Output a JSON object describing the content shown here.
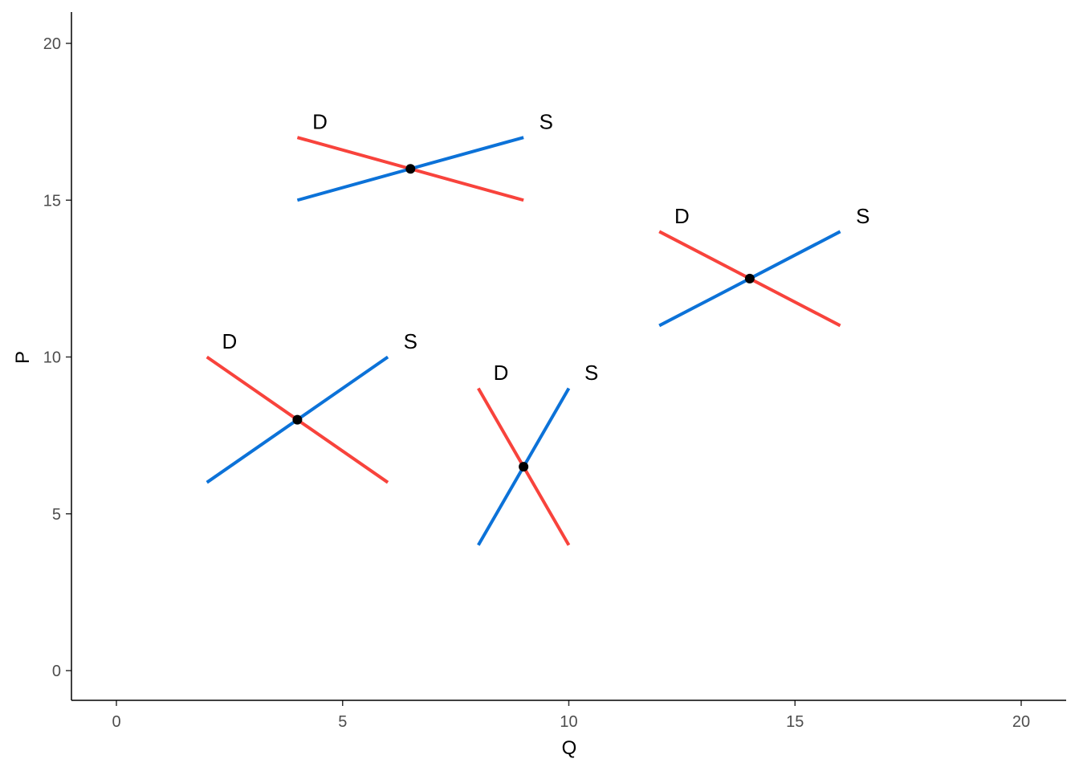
{
  "chart_data": {
    "type": "line",
    "title": "",
    "xlabel": "Q",
    "ylabel": "P",
    "xlim": [
      -1,
      21
    ],
    "ylim": [
      -1,
      21
    ],
    "xticks": [
      0,
      5,
      10,
      15,
      20
    ],
    "yticks": [
      0,
      5,
      10,
      15,
      20
    ],
    "grid": false,
    "colors": {
      "demand": "#F8433C",
      "supply": "#0C72D8",
      "equilibrium": "#000000"
    },
    "markets": [
      {
        "demand": [
          [
            4,
            17
          ],
          [
            9,
            15
          ]
        ],
        "supply": [
          [
            4,
            15
          ],
          [
            9,
            17
          ]
        ],
        "equilibrium": [
          6.5,
          16
        ],
        "demand_label": "D",
        "supply_label": "S",
        "demand_label_at": [
          4.5,
          17.5
        ],
        "supply_label_at": [
          9.5,
          17.5
        ]
      },
      {
        "demand": [
          [
            12,
            14
          ],
          [
            16,
            11
          ]
        ],
        "supply": [
          [
            12,
            11
          ],
          [
            16,
            14
          ]
        ],
        "equilibrium": [
          14,
          12.5
        ],
        "demand_label": "D",
        "supply_label": "S",
        "demand_label_at": [
          12.5,
          14.5
        ],
        "supply_label_at": [
          16.5,
          14.5
        ]
      },
      {
        "demand": [
          [
            2,
            10
          ],
          [
            6,
            6
          ]
        ],
        "supply": [
          [
            2,
            6
          ],
          [
            6,
            10
          ]
        ],
        "equilibrium": [
          4,
          8
        ],
        "demand_label": "D",
        "supply_label": "S",
        "demand_label_at": [
          2.5,
          10.5
        ],
        "supply_label_at": [
          6.5,
          10.5
        ]
      },
      {
        "demand": [
          [
            8,
            9
          ],
          [
            10,
            4
          ]
        ],
        "supply": [
          [
            8,
            4
          ],
          [
            10,
            9
          ]
        ],
        "equilibrium": [
          9,
          6.5
        ],
        "demand_label": "D",
        "supply_label": "S",
        "demand_label_at": [
          8.5,
          9.5
        ],
        "supply_label_at": [
          10.5,
          9.5
        ]
      }
    ]
  }
}
